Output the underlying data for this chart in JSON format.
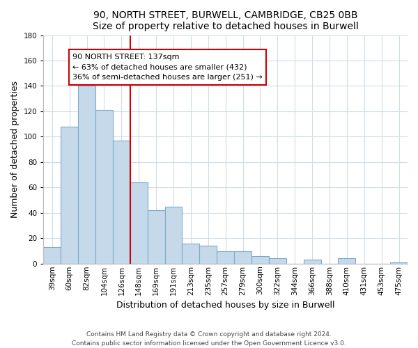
{
  "title1": "90, NORTH STREET, BURWELL, CAMBRIDGE, CB25 0BB",
  "title2": "Size of property relative to detached houses in Burwell",
  "xlabel": "Distribution of detached houses by size in Burwell",
  "ylabel": "Number of detached properties",
  "bar_labels": [
    "39sqm",
    "60sqm",
    "82sqm",
    "104sqm",
    "126sqm",
    "148sqm",
    "169sqm",
    "191sqm",
    "213sqm",
    "235sqm",
    "257sqm",
    "279sqm",
    "300sqm",
    "322sqm",
    "344sqm",
    "366sqm",
    "388sqm",
    "410sqm",
    "431sqm",
    "453sqm",
    "475sqm"
  ],
  "bar_values": [
    13,
    108,
    140,
    121,
    97,
    64,
    42,
    45,
    16,
    14,
    10,
    10,
    6,
    4,
    0,
    3,
    0,
    4,
    0,
    0,
    1
  ],
  "bar_color": "#c6d9ea",
  "bar_edge_color": "#7aaac8",
  "ylim": [
    0,
    180
  ],
  "yticks": [
    0,
    20,
    40,
    60,
    80,
    100,
    120,
    140,
    160,
    180
  ],
  "vline_color": "#cc0000",
  "annotation_title": "90 NORTH STREET: 137sqm",
  "annotation_line1": "← 63% of detached houses are smaller (432)",
  "annotation_line2": "36% of semi-detached houses are larger (251) →",
  "footer1": "Contains HM Land Registry data © Crown copyright and database right 2024.",
  "footer2": "Contains public sector information licensed under the Open Government Licence v3.0.",
  "grid_color": "#d0dce8",
  "title_fontsize": 10,
  "ylabel_fontsize": 9,
  "xlabel_fontsize": 9,
  "tick_fontsize": 7.5,
  "annotation_fontsize": 8,
  "footer_fontsize": 6.5
}
